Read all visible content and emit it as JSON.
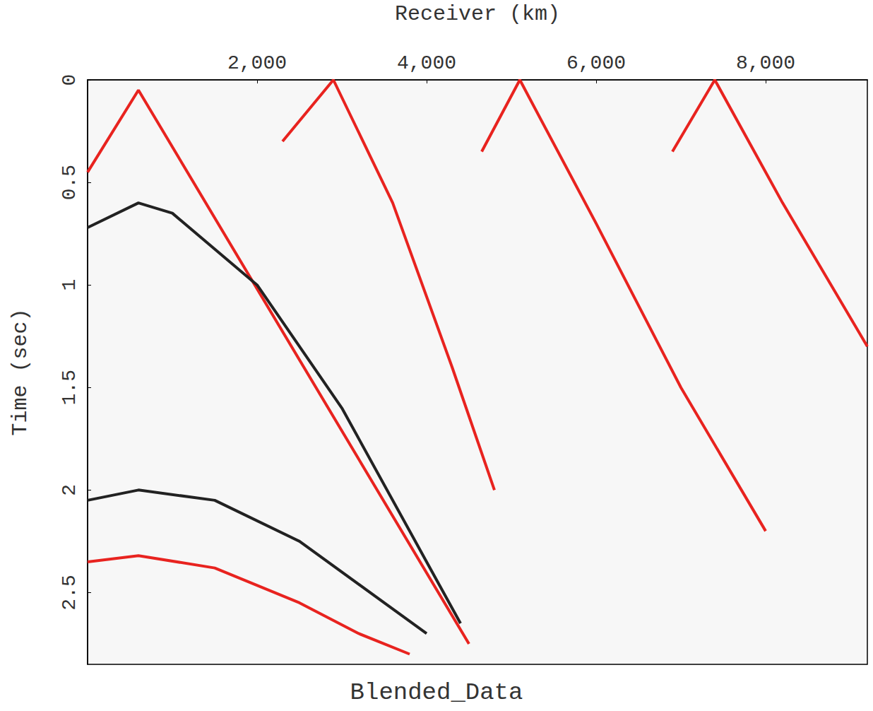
{
  "chart_data": {
    "type": "line",
    "title": "Blended_Data",
    "x_label": "Receiver (km)",
    "y_label": "Time (sec)",
    "xlim": [
      0,
      9200
    ],
    "ylim": [
      0,
      2.85
    ],
    "xticks": [
      2000,
      4000,
      6000,
      8000
    ],
    "yticks": [
      0,
      0.5,
      1,
      1.5,
      2,
      2.5
    ],
    "grid": false,
    "series": [
      {
        "color": "#e8231f",
        "x": [
          0,
          600,
          4500
        ],
        "values": [
          0.45,
          0.05,
          2.75
        ]
      },
      {
        "color": "#222222",
        "x": [
          0,
          600,
          1000,
          2000,
          3000,
          4000,
          4400
        ],
        "values": [
          0.72,
          0.6,
          0.65,
          1.0,
          1.6,
          2.35,
          2.65
        ]
      },
      {
        "color": "#222222",
        "x": [
          0,
          600,
          1500,
          2500,
          3500,
          4000
        ],
        "values": [
          2.05,
          2.0,
          2.05,
          2.25,
          2.55,
          2.7
        ]
      },
      {
        "color": "#e8231f",
        "x": [
          0,
          600,
          1500,
          2500,
          3200,
          3800
        ],
        "values": [
          2.35,
          2.32,
          2.38,
          2.55,
          2.7,
          2.8
        ]
      },
      {
        "color": "#e8231f",
        "x": [
          2300,
          2900,
          3600,
          4300,
          4800
        ],
        "values": [
          0.3,
          0.0,
          0.6,
          1.4,
          2.0
        ]
      },
      {
        "color": "#e8231f",
        "x": [
          4650,
          5100,
          6000,
          7000,
          8000
        ],
        "values": [
          0.35,
          0.0,
          0.7,
          1.5,
          2.2
        ]
      },
      {
        "color": "#e8231f",
        "x": [
          6900,
          7400,
          8200,
          9200
        ],
        "values": [
          0.35,
          0.0,
          0.6,
          1.3
        ]
      }
    ]
  }
}
